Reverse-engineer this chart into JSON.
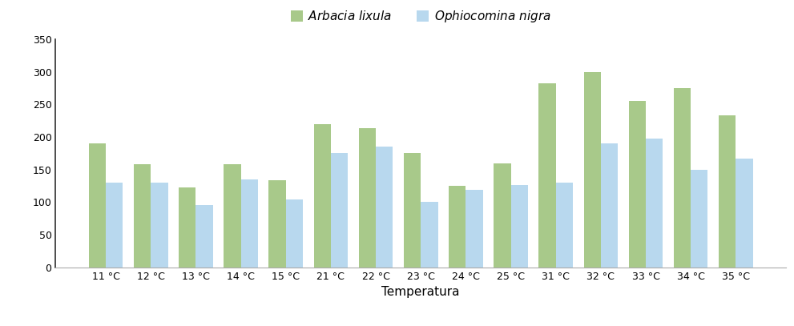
{
  "categories": [
    "11 °C",
    "12 °C",
    "13 °C",
    "14 °C",
    "15 °C",
    "21 °C",
    "22 °C",
    "23 °C",
    "24 °C",
    "25 °C",
    "31 °C",
    "32 °C",
    "33 °C",
    "34 °C",
    "35 °C"
  ],
  "arbacia": [
    190,
    158,
    123,
    158,
    133,
    220,
    214,
    175,
    125,
    160,
    282,
    300,
    255,
    275,
    233
  ],
  "ophiocomina": [
    130,
    130,
    96,
    135,
    104,
    175,
    185,
    100,
    119,
    126,
    130,
    190,
    197,
    150,
    167
  ],
  "arbacia_color": "#A8C98A",
  "ophiocomina_color": "#B8D8EE",
  "arbacia_label": "Arbacia lixula",
  "ophiocomina_label": "Ophiocomina nigra",
  "xlabel": "Temperatura",
  "ylim": [
    0,
    350
  ],
  "yticks": [
    0,
    50,
    100,
    150,
    200,
    250,
    300,
    350
  ],
  "bar_width": 0.38,
  "label_fontsize": 11,
  "tick_fontsize": 9,
  "legend_fontsize": 11,
  "left_spine_color": "#2F2F2F",
  "bottom_spine_color": "#AAAAAA"
}
